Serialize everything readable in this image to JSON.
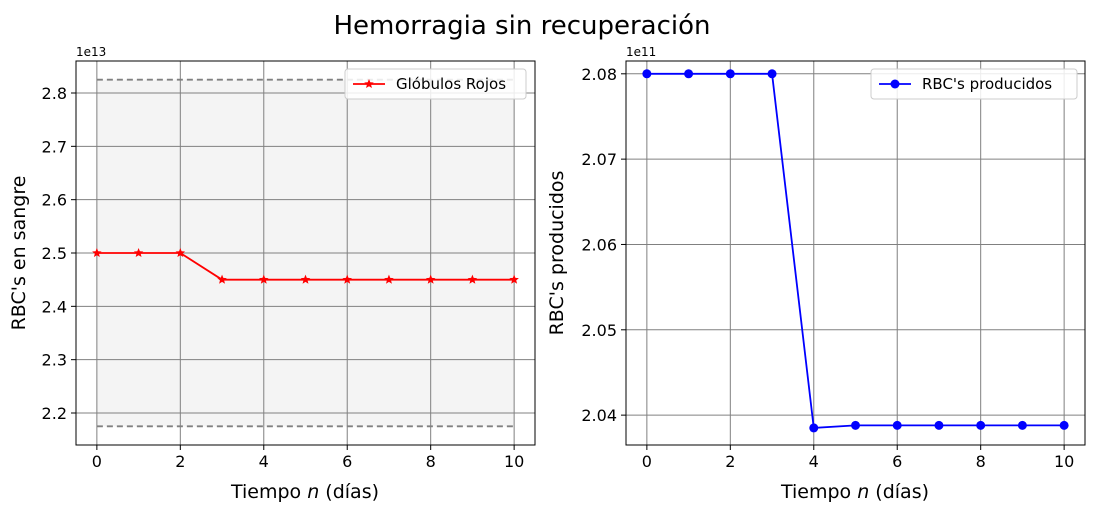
{
  "figure": {
    "title": "Hemorragia sin recuperación"
  },
  "chart_data": [
    {
      "type": "line",
      "xlabel_prefix": "Tiempo ",
      "xlabel_var": "n",
      "xlabel_suffix": " (días)",
      "ylabel": "RBC's en sangre",
      "y_offset_label": "1e13",
      "xlim": [
        -0.5,
        10.5
      ],
      "ylim": [
        2.14,
        2.86
      ],
      "x_ticks": [
        0,
        2,
        4,
        6,
        8,
        10
      ],
      "y_ticks": [
        2.2,
        2.3,
        2.4,
        2.5,
        2.6,
        2.7,
        2.8
      ],
      "grid": true,
      "legend_position": "top-right",
      "shaded_band": {
        "x_range": [
          0,
          10
        ],
        "y_range": [
          2.175,
          2.825
        ],
        "color": "#f4f4f4"
      },
      "reference_lines": [
        {
          "y": 2.825,
          "x_range": [
            0,
            10
          ],
          "style": "dashed",
          "color": "#808080"
        },
        {
          "y": 2.175,
          "x_range": [
            0,
            10
          ],
          "style": "dashed",
          "color": "#808080"
        }
      ],
      "series": [
        {
          "name": "Glóbulos Rojos",
          "color": "#ff0000",
          "marker": "star",
          "x": [
            0,
            1,
            2,
            3,
            4,
            5,
            6,
            7,
            8,
            9,
            10
          ],
          "y": [
            2.5,
            2.5,
            2.5,
            2.45,
            2.45,
            2.45,
            2.45,
            2.45,
            2.45,
            2.45,
            2.45
          ]
        }
      ]
    },
    {
      "type": "line",
      "xlabel_prefix": "Tiempo ",
      "xlabel_var": "n",
      "xlabel_suffix": " (días)",
      "ylabel": "RBC's producidos",
      "y_offset_label": "1e11",
      "xlim": [
        -0.5,
        10.5
      ],
      "ylim": [
        2.0365,
        2.0815
      ],
      "x_ticks": [
        0,
        2,
        4,
        6,
        8,
        10
      ],
      "y_ticks": [
        2.04,
        2.05,
        2.06,
        2.07,
        2.08
      ],
      "grid": true,
      "legend_position": "top-right",
      "series": [
        {
          "name": "RBC's producidos",
          "color": "#0000ff",
          "marker": "circle",
          "x": [
            0,
            1,
            2,
            3,
            4,
            5,
            6,
            7,
            8,
            9,
            10
          ],
          "y": [
            2.08,
            2.08,
            2.08,
            2.08,
            2.0385,
            2.0388,
            2.0388,
            2.0388,
            2.0388,
            2.0388,
            2.0388
          ]
        }
      ]
    }
  ]
}
